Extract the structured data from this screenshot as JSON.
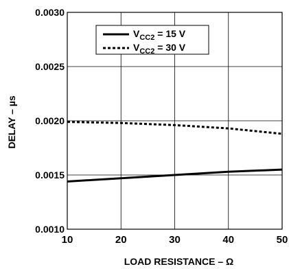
{
  "chart_data": {
    "type": "line",
    "title": "",
    "xlabel": "LOAD RESISTANCE – Ω",
    "ylabel": "DELAY – µs",
    "xlim": [
      10,
      50
    ],
    "ylim": [
      0.001,
      0.003
    ],
    "grid": true,
    "legend_position": "top-center",
    "x_ticks": [
      "10",
      "20",
      "30",
      "40",
      "50"
    ],
    "y_ticks": [
      "0.0010",
      "0.0015",
      "0.0020",
      "0.0025",
      "0.0030"
    ],
    "series": [
      {
        "name": "V",
        "subscript": "CC2",
        "suffix": " = 15 V",
        "style": "solid",
        "x": [
          10,
          20,
          30,
          40,
          50
        ],
        "y": [
          0.00144,
          0.00147,
          0.0015,
          0.00153,
          0.00155
        ]
      },
      {
        "name": "V",
        "subscript": "CC2",
        "suffix": " = 30 V",
        "style": "dashed",
        "x": [
          10,
          20,
          30,
          40,
          50
        ],
        "y": [
          0.00199,
          0.00198,
          0.00196,
          0.00193,
          0.00188
        ]
      }
    ]
  }
}
